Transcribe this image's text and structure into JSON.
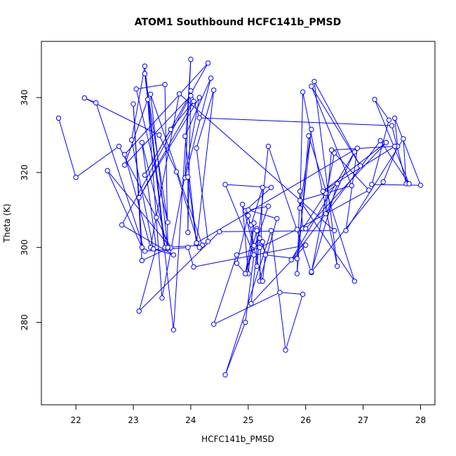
{
  "chart_data": {
    "type": "scatter",
    "title": "ATOM1 Southbound HCFC141b_PMSD",
    "xlabel": "HCFC141b_PMSD",
    "ylabel": "Theta (K)",
    "xlim": [
      21.4,
      28.25
    ],
    "ylim": [
      258,
      355
    ],
    "x_ticks": [
      22,
      23,
      24,
      25,
      26,
      27,
      28
    ],
    "y_ticks": [
      280,
      300,
      320,
      340
    ],
    "grid": false,
    "connected": true,
    "series": [
      {
        "color": "#0000ff",
        "points": [
          [
            21.7,
            334.5
          ],
          [
            22.0,
            318.7
          ],
          [
            22.75,
            327.0
          ],
          [
            23.4,
            308.0
          ],
          [
            23.65,
            299.9
          ],
          [
            22.55,
            320.5
          ],
          [
            23.15,
            300.0
          ],
          [
            23.0,
            338.3
          ],
          [
            23.15,
            296.5
          ],
          [
            23.6,
            299.7
          ],
          [
            23.15,
            328.0
          ],
          [
            23.4,
            300.0
          ],
          [
            23.1,
            283.0
          ],
          [
            24.5,
            304.2
          ],
          [
            26.5,
            304.5
          ],
          [
            23.8,
            341.0
          ],
          [
            23.3,
            300.0
          ],
          [
            22.85,
            324.8
          ],
          [
            24.3,
            349.2
          ],
          [
            23.2,
            319.3
          ],
          [
            23.65,
            331.5
          ],
          [
            24.05,
            339.0
          ],
          [
            23.1,
            313.3
          ],
          [
            24.15,
            340.0
          ],
          [
            23.5,
            286.5
          ],
          [
            23.25,
            339.5
          ],
          [
            22.85,
            322.0
          ],
          [
            24.0,
            340.5
          ],
          [
            22.8,
            306.0
          ],
          [
            23.7,
            298.0
          ],
          [
            23.35,
            299.6
          ],
          [
            22.97,
            328.7
          ],
          [
            23.2,
            348.4
          ],
          [
            23.55,
            300.0
          ],
          [
            24.2,
            300.6
          ],
          [
            23.3,
            340.9
          ],
          [
            23.6,
            300.0
          ],
          [
            23.55,
            343.5
          ],
          [
            23.05,
            342.3
          ],
          [
            23.6,
            306.7
          ],
          [
            23.2,
            346.4
          ],
          [
            23.7,
            278.0
          ],
          [
            24.0,
            350.2
          ],
          [
            23.9,
            318.6
          ],
          [
            24.35,
            345.2
          ],
          [
            23.9,
            329.7
          ],
          [
            24.1,
            301.0
          ],
          [
            23.95,
            318.8
          ],
          [
            23.95,
            304.0
          ],
          [
            24.0,
            341.8
          ],
          [
            24.15,
            334.6
          ],
          [
            27.5,
            332.5
          ],
          [
            27.75,
            317.0
          ],
          [
            27.7,
            329.0
          ],
          [
            26.7,
            304.5
          ],
          [
            26.9,
            326.5
          ],
          [
            24.1,
            301.2
          ],
          [
            24.4,
            342.0
          ],
          [
            24.1,
            326.5
          ],
          [
            24.3,
            301.6
          ],
          [
            24.15,
            300.0
          ],
          [
            23.75,
            320.2
          ],
          [
            23.45,
            330.0
          ],
          [
            22.15,
            339.9
          ],
          [
            22.35,
            338.6
          ],
          [
            23.2,
            299.0
          ],
          [
            23.95,
            300.0
          ],
          [
            24.05,
            294.8
          ],
          [
            26.0,
            300.6
          ],
          [
            25.05,
            285.0
          ],
          [
            25.35,
            327.0
          ],
          [
            26.1,
            293.3
          ],
          [
            26.5,
            325.2
          ],
          [
            27.1,
            315.3
          ],
          [
            25.85,
            304.8
          ],
          [
            25.2,
            300.0
          ],
          [
            24.8,
            298.0
          ],
          [
            24.4,
            279.5
          ],
          [
            25.55,
            288.0
          ],
          [
            25.95,
            287.5
          ],
          [
            25.65,
            272.6
          ],
          [
            25.4,
            304.5
          ],
          [
            24.6,
            266.0
          ],
          [
            24.95,
            280.0
          ],
          [
            25.1,
            298.0
          ],
          [
            24.6,
            316.8
          ],
          [
            25.4,
            316.0
          ],
          [
            24.95,
            309.8
          ],
          [
            25.05,
            306.0
          ],
          [
            25.25,
            316.0
          ],
          [
            25.2,
            291.0
          ],
          [
            25.5,
            307.7
          ],
          [
            25.0,
            310.0
          ],
          [
            25.35,
            311.0
          ],
          [
            24.95,
            293.0
          ],
          [
            24.8,
            295.8
          ],
          [
            25.0,
            308.5
          ],
          [
            25.1,
            300.5
          ],
          [
            25.2,
            302.5
          ],
          [
            25.15,
            295.0
          ],
          [
            25.15,
            305.0
          ],
          [
            25.3,
            298.3
          ],
          [
            25.25,
            291.0
          ],
          [
            24.9,
            311.5
          ],
          [
            25.0,
            293.0
          ],
          [
            25.1,
            306.5
          ],
          [
            24.95,
            293.0
          ],
          [
            25.15,
            304.5
          ],
          [
            25.25,
            301.5
          ],
          [
            25.3,
            298.0
          ],
          [
            25.85,
            297.0
          ],
          [
            26.1,
            331.5
          ],
          [
            25.9,
            310.5
          ],
          [
            25.95,
            341.5
          ],
          [
            26.55,
            295.0
          ],
          [
            26.15,
            344.3
          ],
          [
            26.95,
            321.8
          ],
          [
            26.1,
            343.0
          ],
          [
            26.8,
            316.5
          ],
          [
            25.9,
            312.5
          ],
          [
            26.85,
            291.0
          ],
          [
            26.05,
            329.8
          ],
          [
            25.85,
            293.0
          ],
          [
            25.9,
            315.0
          ],
          [
            25.95,
            305.0
          ],
          [
            26.35,
            314.5
          ],
          [
            26.55,
            317.0
          ],
          [
            26.1,
            293.5
          ],
          [
            27.35,
            317.5
          ],
          [
            27.6,
            327.0
          ],
          [
            27.55,
            334.5
          ],
          [
            28.0,
            316.6
          ],
          [
            27.15,
            316.8
          ],
          [
            27.45,
            334.0
          ],
          [
            27.2,
            339.5
          ],
          [
            27.8,
            317.0
          ],
          [
            27.3,
            328.5
          ],
          [
            25.75,
            296.7
          ],
          [
            26.85,
            325.5
          ],
          [
            26.35,
            309.0
          ],
          [
            26.45,
            326.0
          ],
          [
            27.55,
            327.0
          ],
          [
            26.3,
            315.0
          ],
          [
            27.4,
            328.0
          ],
          [
            26.0,
            305.0
          ]
        ]
      }
    ]
  }
}
